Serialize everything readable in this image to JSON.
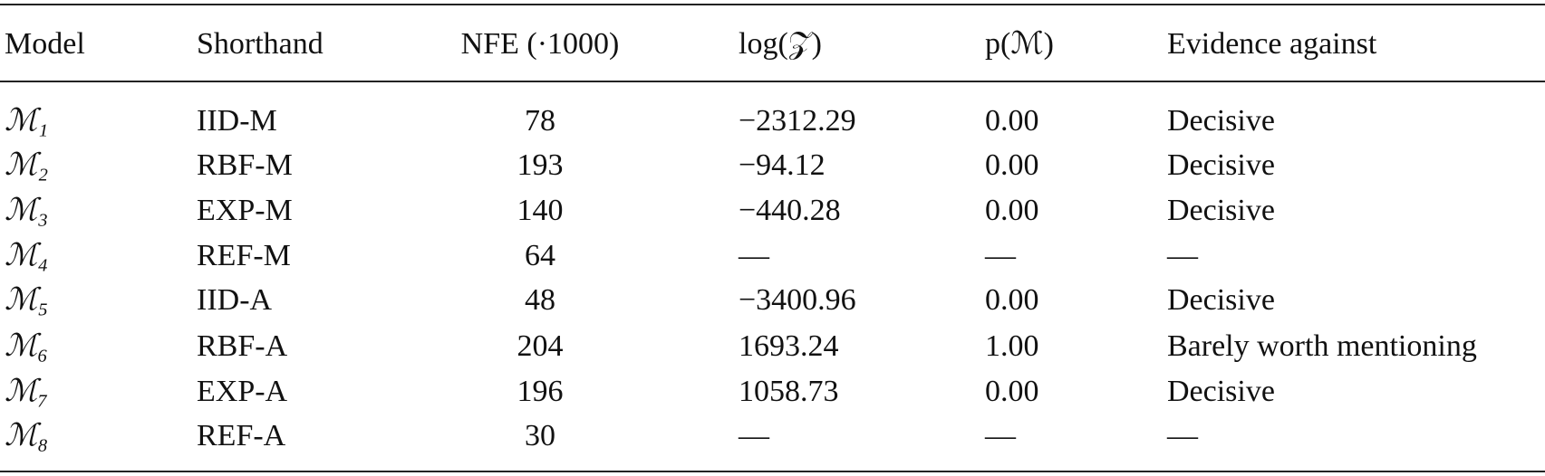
{
  "table": {
    "columns": [
      "Model",
      "Shorthand",
      "NFE (·1000)",
      "log(𝒵)",
      "p(ℳ)",
      "Evidence against"
    ],
    "rows": [
      [
        "ℳ₁",
        "IID-M",
        "78",
        "−2312.29",
        "0.00",
        "Decisive"
      ],
      [
        "ℳ₂",
        "RBF-M",
        "193",
        "−94.12",
        "0.00",
        "Decisive"
      ],
      [
        "ℳ₃",
        "EXP-M",
        "140",
        "−440.28",
        "0.00",
        "Decisive"
      ],
      [
        "ℳ₄",
        "REF-M",
        "64",
        "—",
        "—",
        "—"
      ],
      [
        "ℳ₅",
        "IID-A",
        "48",
        "−3400.96",
        "0.00",
        "Decisive"
      ],
      [
        "ℳ₆",
        "RBF-A",
        "204",
        "1693.24",
        "1.00",
        "Barely worth mentioning"
      ],
      [
        "ℳ₇",
        "EXP-A",
        "196",
        "1058.73",
        "0.00",
        "Decisive"
      ],
      [
        "ℳ₈",
        "REF-A",
        "30",
        "—",
        "—",
        "—"
      ]
    ]
  }
}
